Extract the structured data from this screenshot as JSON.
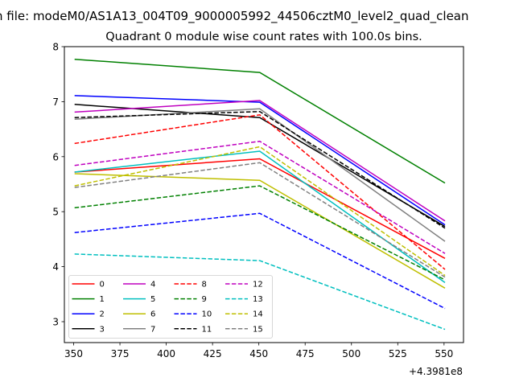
{
  "figure": {
    "suptitle": "n file: modeM0/AS1A13_004T09_9000005992_44506cztM0_level2_quad_clean"
  },
  "chart_data": {
    "type": "line",
    "title": "Quadrant 0 module wise count rates with 100.0s bins.",
    "xlabel": "",
    "ylabel": "",
    "x_offset_label": "+4.3981e8",
    "x": [
      350.5,
      450.5,
      550.5
    ],
    "xlim": [
      345.0,
      560.5
    ],
    "ylim": [
      2.62,
      8.0
    ],
    "xticks": [
      350,
      375,
      400,
      425,
      450,
      475,
      500,
      525,
      550
    ],
    "yticks": [
      3,
      4,
      5,
      6,
      7,
      8
    ],
    "grid": false,
    "legend_position": "lower-left",
    "legend_columns": 4,
    "series": [
      {
        "name": "0",
        "color": "#ff0000",
        "dashed": false,
        "values": [
          5.72,
          5.96,
          4.15
        ]
      },
      {
        "name": "1",
        "color": "#008000",
        "dashed": false,
        "values": [
          7.77,
          7.53,
          5.52
        ]
      },
      {
        "name": "2",
        "color": "#0000ff",
        "dashed": false,
        "values": [
          7.11,
          6.99,
          4.76
        ]
      },
      {
        "name": "3",
        "color": "#000000",
        "dashed": false,
        "values": [
          6.95,
          6.71,
          4.73
        ]
      },
      {
        "name": "4",
        "color": "#bf00bf",
        "dashed": false,
        "values": [
          6.81,
          7.02,
          4.83
        ]
      },
      {
        "name": "5",
        "color": "#00bfbf",
        "dashed": false,
        "values": [
          5.72,
          6.1,
          3.71
        ]
      },
      {
        "name": "6",
        "color": "#bfbf00",
        "dashed": false,
        "values": [
          5.69,
          5.57,
          3.61
        ]
      },
      {
        "name": "7",
        "color": "#808080",
        "dashed": false,
        "values": [
          6.68,
          6.87,
          4.46
        ]
      },
      {
        "name": "8",
        "color": "#ff0000",
        "dashed": true,
        "values": [
          6.24,
          6.76,
          3.95
        ]
      },
      {
        "name": "9",
        "color": "#008000",
        "dashed": true,
        "values": [
          5.07,
          5.47,
          3.76
        ]
      },
      {
        "name": "10",
        "color": "#0000ff",
        "dashed": true,
        "values": [
          4.62,
          4.97,
          3.24
        ]
      },
      {
        "name": "11",
        "color": "#000000",
        "dashed": true,
        "values": [
          6.71,
          6.82,
          4.7
        ]
      },
      {
        "name": "12",
        "color": "#bf00bf",
        "dashed": true,
        "values": [
          5.84,
          6.28,
          4.24
        ]
      },
      {
        "name": "13",
        "color": "#00bfbf",
        "dashed": true,
        "values": [
          4.23,
          4.11,
          2.86
        ]
      },
      {
        "name": "14",
        "color": "#bfbf00",
        "dashed": true,
        "values": [
          5.47,
          6.18,
          3.84
        ]
      },
      {
        "name": "15",
        "color": "#808080",
        "dashed": true,
        "values": [
          5.44,
          5.89,
          3.81
        ]
      }
    ]
  }
}
